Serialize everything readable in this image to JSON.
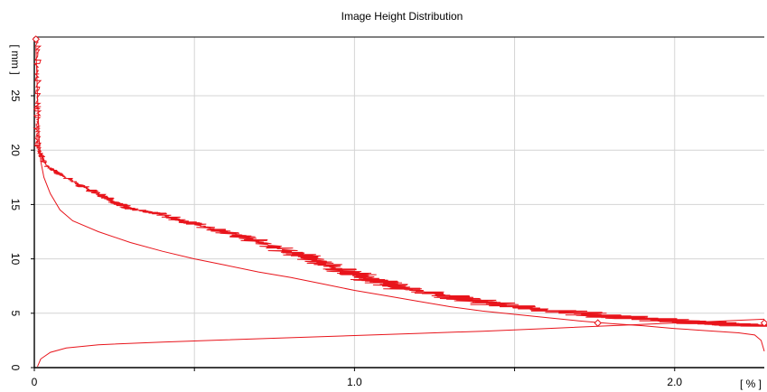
{
  "chart_data": {
    "type": "line",
    "title": "Image Height Distribution",
    "xlabel": "[ % ]",
    "ylabel": "[ mm ]",
    "xlim": [
      0,
      2.28
    ],
    "ylim": [
      0,
      30.4
    ],
    "x_ticks": [
      0,
      0.5,
      1.0,
      1.5,
      2.0
    ],
    "x_tick_labels": [
      "0",
      "",
      "1.0",
      "",
      "2.0"
    ],
    "y_ticks": [
      0,
      5,
      10,
      15,
      20,
      25
    ],
    "y_tick_labels": [
      "0",
      "5",
      "10",
      "15",
      "20",
      "25"
    ],
    "grid": true,
    "colors": {
      "series": "#e8141b",
      "grid": "#d4d4d4"
    },
    "series": [
      {
        "style": "noisy",
        "points": [
          [
            0.01,
            30.2
          ],
          [
            0.01,
            27
          ],
          [
            0.01,
            24
          ],
          [
            0.01,
            22
          ],
          [
            0.01,
            20.5
          ],
          [
            0.02,
            19.5
          ],
          [
            0.04,
            18.5
          ],
          [
            0.08,
            17.8
          ],
          [
            0.14,
            16.8
          ],
          [
            0.2,
            16
          ],
          [
            0.25,
            15.2
          ],
          [
            0.3,
            14.6
          ],
          [
            0.38,
            14.2
          ],
          [
            0.45,
            13.6
          ],
          [
            0.5,
            13.2
          ],
          [
            0.58,
            12.6
          ],
          [
            0.65,
            12.1
          ],
          [
            0.72,
            11.4
          ],
          [
            0.8,
            10.6
          ],
          [
            0.85,
            10.2
          ],
          [
            0.9,
            9.6
          ],
          [
            0.95,
            9.0
          ],
          [
            1.0,
            8.6
          ],
          [
            1.05,
            8.1
          ],
          [
            1.1,
            7.8
          ],
          [
            1.15,
            7.3
          ],
          [
            1.25,
            6.8
          ],
          [
            1.35,
            6.3
          ],
          [
            1.45,
            5.8
          ],
          [
            1.55,
            5.4
          ],
          [
            1.7,
            5.0
          ],
          [
            1.85,
            4.6
          ],
          [
            2.0,
            4.3
          ],
          [
            2.1,
            4.1
          ],
          [
            2.2,
            3.9
          ],
          [
            2.28,
            3.8
          ]
        ]
      },
      {
        "style": "smooth",
        "points": [
          [
            0.005,
            29.5
          ],
          [
            0.01,
            25
          ],
          [
            0.015,
            21
          ],
          [
            0.02,
            19
          ],
          [
            0.03,
            17.5
          ],
          [
            0.05,
            16
          ],
          [
            0.08,
            14.5
          ],
          [
            0.12,
            13.5
          ],
          [
            0.2,
            12.5
          ],
          [
            0.3,
            11.5
          ],
          [
            0.4,
            10.7
          ],
          [
            0.5,
            10
          ],
          [
            0.6,
            9.4
          ],
          [
            0.7,
            8.8
          ],
          [
            0.8,
            8.3
          ],
          [
            0.9,
            7.7
          ],
          [
            1.0,
            7.1
          ],
          [
            1.1,
            6.6
          ],
          [
            1.2,
            6.1
          ],
          [
            1.3,
            5.6
          ],
          [
            1.4,
            5.2
          ],
          [
            1.5,
            4.9
          ],
          [
            1.6,
            4.6
          ],
          [
            1.7,
            4.3
          ],
          [
            1.8,
            4.05
          ],
          [
            1.9,
            3.85
          ],
          [
            2.0,
            3.6
          ],
          [
            2.1,
            3.4
          ],
          [
            2.2,
            3.2
          ],
          [
            2.25,
            3.0
          ],
          [
            2.27,
            2.5
          ],
          [
            2.28,
            1.5
          ]
        ]
      },
      {
        "style": "smooth",
        "points": [
          [
            0.01,
            0.1
          ],
          [
            0.02,
            0.8
          ],
          [
            0.05,
            1.4
          ],
          [
            0.1,
            1.8
          ],
          [
            0.2,
            2.1
          ],
          [
            0.4,
            2.35
          ],
          [
            0.6,
            2.55
          ],
          [
            0.8,
            2.75
          ],
          [
            1.0,
            2.95
          ],
          [
            1.2,
            3.15
          ],
          [
            1.4,
            3.35
          ],
          [
            1.6,
            3.6
          ],
          [
            1.8,
            3.85
          ],
          [
            2.0,
            4.1
          ],
          [
            2.2,
            4.35
          ],
          [
            2.28,
            4.45
          ]
        ]
      }
    ],
    "markers": [
      [
        1.76,
        4.1
      ],
      [
        2.28,
        4.1
      ],
      [
        0.005,
        30.2
      ]
    ]
  }
}
